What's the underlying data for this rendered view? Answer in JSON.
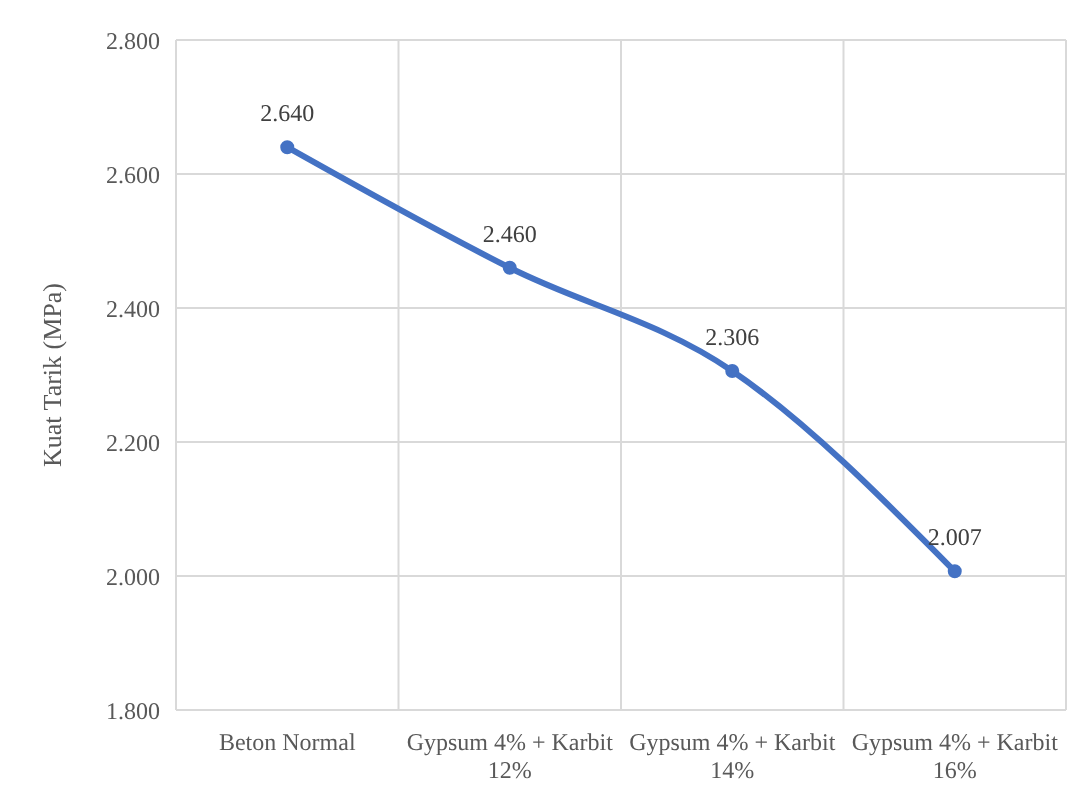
{
  "chart_data": {
    "type": "line",
    "ylabel": "Kuat Tarik (MPa)",
    "categories": [
      "Beton Normal",
      "Gypsum 4% + Karbit 12%",
      "Gypsum 4% + Karbit 14%",
      "Gypsum 4% + Karbit 16%"
    ],
    "series": [
      {
        "color": "#4472c4",
        "values": [
          2.64,
          2.46,
          2.306,
          2.007
        ],
        "value_labels": [
          "2.640",
          "2.460",
          "2.306",
          "2.007"
        ]
      }
    ],
    "ylim": [
      1.8,
      2.8
    ],
    "yticks": [
      {
        "value": 1.8,
        "label": "1.800"
      },
      {
        "value": 2.0,
        "label": "2.000"
      },
      {
        "value": 2.2,
        "label": "2.200"
      },
      {
        "value": 2.4,
        "label": "2.400"
      },
      {
        "value": 2.6,
        "label": "2.600"
      },
      {
        "value": 2.8,
        "label": "2.800"
      }
    ],
    "grid": true,
    "marker": "circle",
    "line_style": "solid"
  }
}
